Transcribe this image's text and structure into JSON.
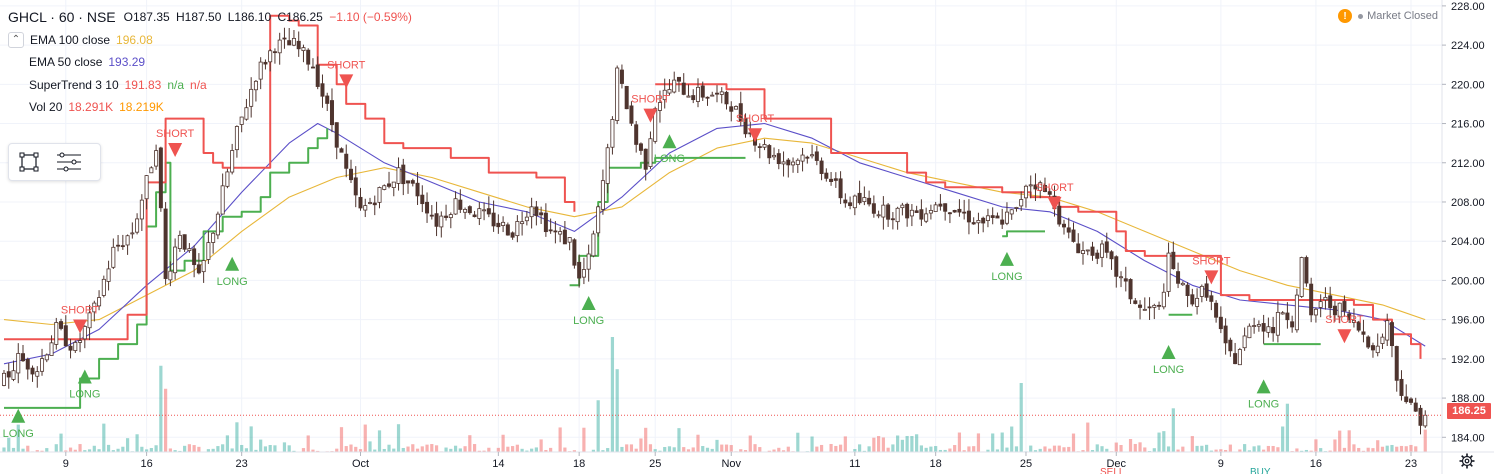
{
  "legend": {
    "symbol": "GHCL · 60 · NSE",
    "open": "O187.35",
    "high": "H187.50",
    "low": "L186.10",
    "close": "C186.25",
    "change": "−1.10 (−0.59%)",
    "indicators": [
      {
        "name": "EMA 100 close",
        "values": [
          "196.08"
        ],
        "colors": [
          "#e8b73a"
        ]
      },
      {
        "name": "EMA 50 close",
        "values": [
          "193.29"
        ],
        "colors": [
          "#5b4fc8"
        ]
      },
      {
        "name": "SuperTrend 3 10",
        "values": [
          "191.83",
          "n/a",
          "n/a"
        ],
        "colors": [
          "#ef5350",
          "#4caf50",
          "#ef5350"
        ]
      },
      {
        "name": "Vol 20",
        "values": [
          "18.291K",
          "18.219K"
        ],
        "colors": [
          "#ef5350",
          "#ff9800"
        ]
      }
    ]
  },
  "status": {
    "text": "Market Closed"
  },
  "last_price": "186.25",
  "bottom_tags": [
    "SELL",
    "BUY"
  ],
  "colors": {
    "up": "#26a69a",
    "down": "#ef5350",
    "candle_body": "#4e342e",
    "st_long": "#4caf50",
    "st_short": "#ef5350",
    "ema100": "#e8b73a",
    "ema50": "#5b4fc8"
  },
  "chart_data": {
    "type": "candlestick",
    "symbol": "GHCL",
    "interval": "60",
    "exchange": "NSE",
    "y_range": [
      182.5,
      228.6
    ],
    "y_ticks": [
      184,
      188,
      192,
      196,
      200,
      204,
      208,
      212,
      216,
      220,
      224,
      228
    ],
    "x_range": [
      0,
      300
    ],
    "x_ticks": [
      {
        "label": "9",
        "x": 13
      },
      {
        "label": "16",
        "x": 30
      },
      {
        "label": "23",
        "x": 50
      },
      {
        "label": "Oct",
        "x": 75
      },
      {
        "label": "14",
        "x": 104
      },
      {
        "label": "18",
        "x": 121
      },
      {
        "label": "25",
        "x": 137
      },
      {
        "label": "Nov",
        "x": 153
      },
      {
        "label": "11",
        "x": 179
      },
      {
        "label": "18",
        "x": 196
      },
      {
        "label": "25",
        "x": 215
      },
      {
        "label": "Dec",
        "x": 234
      },
      {
        "label": "9",
        "x": 256
      },
      {
        "label": "16",
        "x": 276
      },
      {
        "label": "23",
        "x": 296
      }
    ],
    "price_anchors": [
      [
        0,
        189
      ],
      [
        4,
        192
      ],
      [
        8,
        191
      ],
      [
        12,
        195
      ],
      [
        16,
        193
      ],
      [
        20,
        197
      ],
      [
        24,
        203
      ],
      [
        28,
        205
      ],
      [
        31,
        210
      ],
      [
        33,
        214
      ],
      [
        35,
        200
      ],
      [
        38,
        205
      ],
      [
        42,
        200
      ],
      [
        46,
        207
      ],
      [
        50,
        215
      ],
      [
        54,
        221
      ],
      [
        58,
        224
      ],
      [
        62,
        224
      ],
      [
        66,
        222
      ],
      [
        70,
        216
      ],
      [
        73,
        211
      ],
      [
        76,
        207
      ],
      [
        80,
        209
      ],
      [
        84,
        211
      ],
      [
        88,
        209
      ],
      [
        92,
        206
      ],
      [
        96,
        208
      ],
      [
        100,
        207
      ],
      [
        104,
        206
      ],
      [
        108,
        205
      ],
      [
        112,
        208
      ],
      [
        116,
        205
      ],
      [
        120,
        204
      ],
      [
        122,
        200
      ],
      [
        124,
        202
      ],
      [
        126,
        207
      ],
      [
        128,
        213
      ],
      [
        130,
        221
      ],
      [
        132,
        218
      ],
      [
        134,
        214
      ],
      [
        136,
        212
      ],
      [
        138,
        218
      ],
      [
        142,
        220
      ],
      [
        146,
        219
      ],
      [
        150,
        219
      ],
      [
        154,
        218
      ],
      [
        158,
        215
      ],
      [
        162,
        213
      ],
      [
        166,
        212
      ],
      [
        170,
        213
      ],
      [
        174,
        211
      ],
      [
        178,
        208
      ],
      [
        182,
        208
      ],
      [
        186,
        207
      ],
      [
        190,
        207
      ],
      [
        194,
        207
      ],
      [
        198,
        208
      ],
      [
        202,
        207
      ],
      [
        206,
        206
      ],
      [
        210,
        206
      ],
      [
        214,
        207
      ],
      [
        216,
        210
      ],
      [
        218,
        210
      ],
      [
        222,
        208
      ],
      [
        224,
        205
      ],
      [
        228,
        203
      ],
      [
        232,
        203
      ],
      [
        236,
        200
      ],
      [
        240,
        197
      ],
      [
        244,
        197
      ],
      [
        246,
        202
      ],
      [
        250,
        198
      ],
      [
        254,
        199
      ],
      [
        256,
        196
      ],
      [
        258,
        193
      ],
      [
        260,
        192
      ],
      [
        264,
        196
      ],
      [
        268,
        195
      ],
      [
        270,
        197
      ],
      [
        272,
        196
      ],
      [
        274,
        202
      ],
      [
        276,
        196
      ],
      [
        278,
        198
      ],
      [
        282,
        197
      ],
      [
        286,
        195
      ],
      [
        288,
        194
      ],
      [
        290,
        193
      ],
      [
        292,
        196
      ],
      [
        294,
        190
      ],
      [
        297,
        187
      ],
      [
        299,
        186
      ]
    ],
    "supertrend_long": [
      [
        0,
        187.0
      ],
      [
        13,
        187.0
      ],
      [
        16,
        190.0
      ],
      [
        20,
        192.0
      ],
      [
        24,
        193.5
      ],
      [
        28,
        195.5
      ],
      [
        30,
        205.5
      ],
      [
        32,
        209.0
      ],
      [
        34,
        212.0
      ],
      [
        35,
        201.0
      ],
      [
        38,
        202.0
      ],
      [
        42,
        205.0
      ],
      [
        46,
        206.5
      ],
      [
        50,
        207.0
      ],
      [
        54,
        208.5
      ],
      [
        56,
        211.0
      ],
      [
        60,
        212.0
      ],
      [
        64,
        213.5
      ],
      [
        66,
        214.5
      ],
      [
        68,
        215.5
      ]
    ],
    "supertrend_long2": [
      [
        119,
        199.5
      ],
      [
        121,
        202.5
      ],
      [
        125,
        208.0
      ],
      [
        127,
        211.5
      ],
      [
        131,
        211.5
      ],
      [
        134,
        212.0
      ],
      [
        137,
        212.5
      ],
      [
        150,
        212.5
      ],
      [
        156,
        212.5
      ]
    ],
    "supertrend_long3": [
      [
        210,
        204.5
      ],
      [
        211,
        205.0
      ],
      [
        219,
        205.0
      ]
    ],
    "supertrend_long4": [
      [
        245,
        196.5
      ],
      [
        250,
        196.5
      ]
    ],
    "supertrend_long5": [
      [
        265,
        193.5
      ],
      [
        277,
        193.5
      ]
    ],
    "supertrend_short": [
      [
        0,
        194.0
      ],
      [
        12,
        194.0
      ],
      [
        19,
        194.0
      ],
      [
        26,
        196.5
      ],
      [
        30,
        210.0
      ],
      [
        34,
        216.5
      ],
      [
        37,
        216.5
      ],
      [
        40,
        216.5
      ],
      [
        42,
        213.0
      ],
      [
        44,
        212.0
      ],
      [
        46,
        211.5
      ],
      [
        56,
        227.0
      ],
      [
        60,
        226.5
      ],
      [
        62,
        226.0
      ],
      [
        66,
        222.0
      ],
      [
        70,
        220.0
      ],
      [
        72,
        218.0
      ],
      [
        76,
        216.5
      ],
      [
        80,
        214.0
      ],
      [
        84,
        213.5
      ],
      [
        90,
        213.5
      ],
      [
        94,
        212.5
      ],
      [
        98,
        212.5
      ],
      [
        102,
        211.0
      ],
      [
        108,
        211.0
      ],
      [
        112,
        210.5
      ],
      [
        116,
        210.5
      ],
      [
        118,
        208.0
      ],
      [
        120,
        207.0
      ]
    ],
    "supertrend_short2": [
      [
        137,
        220.0
      ],
      [
        146,
        220.0
      ],
      [
        152,
        219.5
      ],
      [
        156,
        219.5
      ],
      [
        160,
        216.5
      ],
      [
        172,
        216.5
      ],
      [
        174,
        213.0
      ],
      [
        182,
        213.0
      ],
      [
        190,
        211.0
      ],
      [
        194,
        210.0
      ],
      [
        198,
        209.5
      ],
      [
        210,
        209.0
      ],
      [
        216,
        208.5
      ],
      [
        222,
        207.5
      ],
      [
        226,
        207.0
      ],
      [
        230,
        207.0
      ],
      [
        234,
        205.0
      ],
      [
        236,
        203.0
      ],
      [
        240,
        202.5
      ],
      [
        252,
        202.5
      ],
      [
        256,
        198.5
      ],
      [
        262,
        198.0
      ],
      [
        280,
        198.0
      ],
      [
        284,
        197.5
      ],
      [
        288,
        196.0
      ],
      [
        292,
        194.5
      ],
      [
        296,
        193.5
      ],
      [
        298,
        192.0
      ]
    ],
    "ema100": [
      [
        0,
        196.0
      ],
      [
        10,
        195.5
      ],
      [
        20,
        196.0
      ],
      [
        30,
        198.5
      ],
      [
        40,
        201.0
      ],
      [
        50,
        205.0
      ],
      [
        60,
        208.5
      ],
      [
        70,
        210.5
      ],
      [
        80,
        211.5
      ],
      [
        90,
        210.5
      ],
      [
        100,
        209.0
      ],
      [
        110,
        207.5
      ],
      [
        120,
        206.5
      ],
      [
        130,
        207.5
      ],
      [
        140,
        211.0
      ],
      [
        150,
        213.5
      ],
      [
        160,
        214.5
      ],
      [
        170,
        214.0
      ],
      [
        180,
        212.5
      ],
      [
        190,
        211.0
      ],
      [
        200,
        210.0
      ],
      [
        210,
        209.0
      ],
      [
        220,
        208.5
      ],
      [
        230,
        207.0
      ],
      [
        240,
        205.0
      ],
      [
        250,
        203.0
      ],
      [
        260,
        201.0
      ],
      [
        270,
        199.5
      ],
      [
        280,
        198.5
      ],
      [
        290,
        197.5
      ],
      [
        299,
        196.0
      ]
    ],
    "ema50": [
      [
        0,
        191.5
      ],
      [
        10,
        192.5
      ],
      [
        20,
        195.0
      ],
      [
        30,
        199.5
      ],
      [
        40,
        203.5
      ],
      [
        50,
        209.0
      ],
      [
        60,
        214.0
      ],
      [
        66,
        216.0
      ],
      [
        70,
        215.0
      ],
      [
        80,
        212.0
      ],
      [
        90,
        210.0
      ],
      [
        100,
        208.0
      ],
      [
        110,
        207.0
      ],
      [
        120,
        205.0
      ],
      [
        130,
        208.5
      ],
      [
        140,
        213.0
      ],
      [
        150,
        215.5
      ],
      [
        160,
        216.0
      ],
      [
        170,
        214.5
      ],
      [
        180,
        212.0
      ],
      [
        190,
        210.5
      ],
      [
        200,
        209.0
      ],
      [
        210,
        207.5
      ],
      [
        220,
        207.0
      ],
      [
        230,
        205.0
      ],
      [
        240,
        202.0
      ],
      [
        250,
        199.5
      ],
      [
        260,
        198.0
      ],
      [
        270,
        197.5
      ],
      [
        280,
        197.0
      ],
      [
        290,
        196.0
      ],
      [
        299,
        193.3
      ]
    ],
    "signals": [
      {
        "type": "LONG",
        "x": 3,
        "price": 186.5
      },
      {
        "type": "SHORT",
        "x": 16,
        "price": 195.0
      },
      {
        "type": "LONG",
        "x": 17,
        "price": 190.5
      },
      {
        "type": "SHORT",
        "x": 36,
        "price": 213.0
      },
      {
        "type": "LONG",
        "x": 48,
        "price": 202.0
      },
      {
        "type": "SHORT",
        "x": 72,
        "price": 220.0
      },
      {
        "type": "LONG",
        "x": 123,
        "price": 198.0
      },
      {
        "type": "SHORT",
        "x": 136,
        "price": 216.5
      },
      {
        "type": "LONG",
        "x": 140,
        "price": 214.5
      },
      {
        "type": "SHORT",
        "x": 158,
        "price": 214.5
      },
      {
        "type": "LONG",
        "x": 211,
        "price": 202.5
      },
      {
        "type": "SHORT",
        "x": 221,
        "price": 207.5
      },
      {
        "type": "LONG",
        "x": 245,
        "price": 193.0
      },
      {
        "type": "SHORT",
        "x": 254,
        "price": 200.0
      },
      {
        "type": "LONG",
        "x": 265,
        "price": 189.5
      },
      {
        "type": "SHORT",
        "x": 282,
        "price": 194.0
      }
    ],
    "volume_spikes": [
      {
        "x": 33,
        "h": 0.75
      },
      {
        "x": 34,
        "h": 0.55
      },
      {
        "x": 125,
        "h": 0.45
      },
      {
        "x": 128,
        "h": 1.0
      },
      {
        "x": 129,
        "h": 0.72
      },
      {
        "x": 214,
        "h": 0.6
      },
      {
        "x": 246,
        "h": 0.38
      },
      {
        "x": 270,
        "h": 0.42
      }
    ],
    "last_close": 186.25
  }
}
